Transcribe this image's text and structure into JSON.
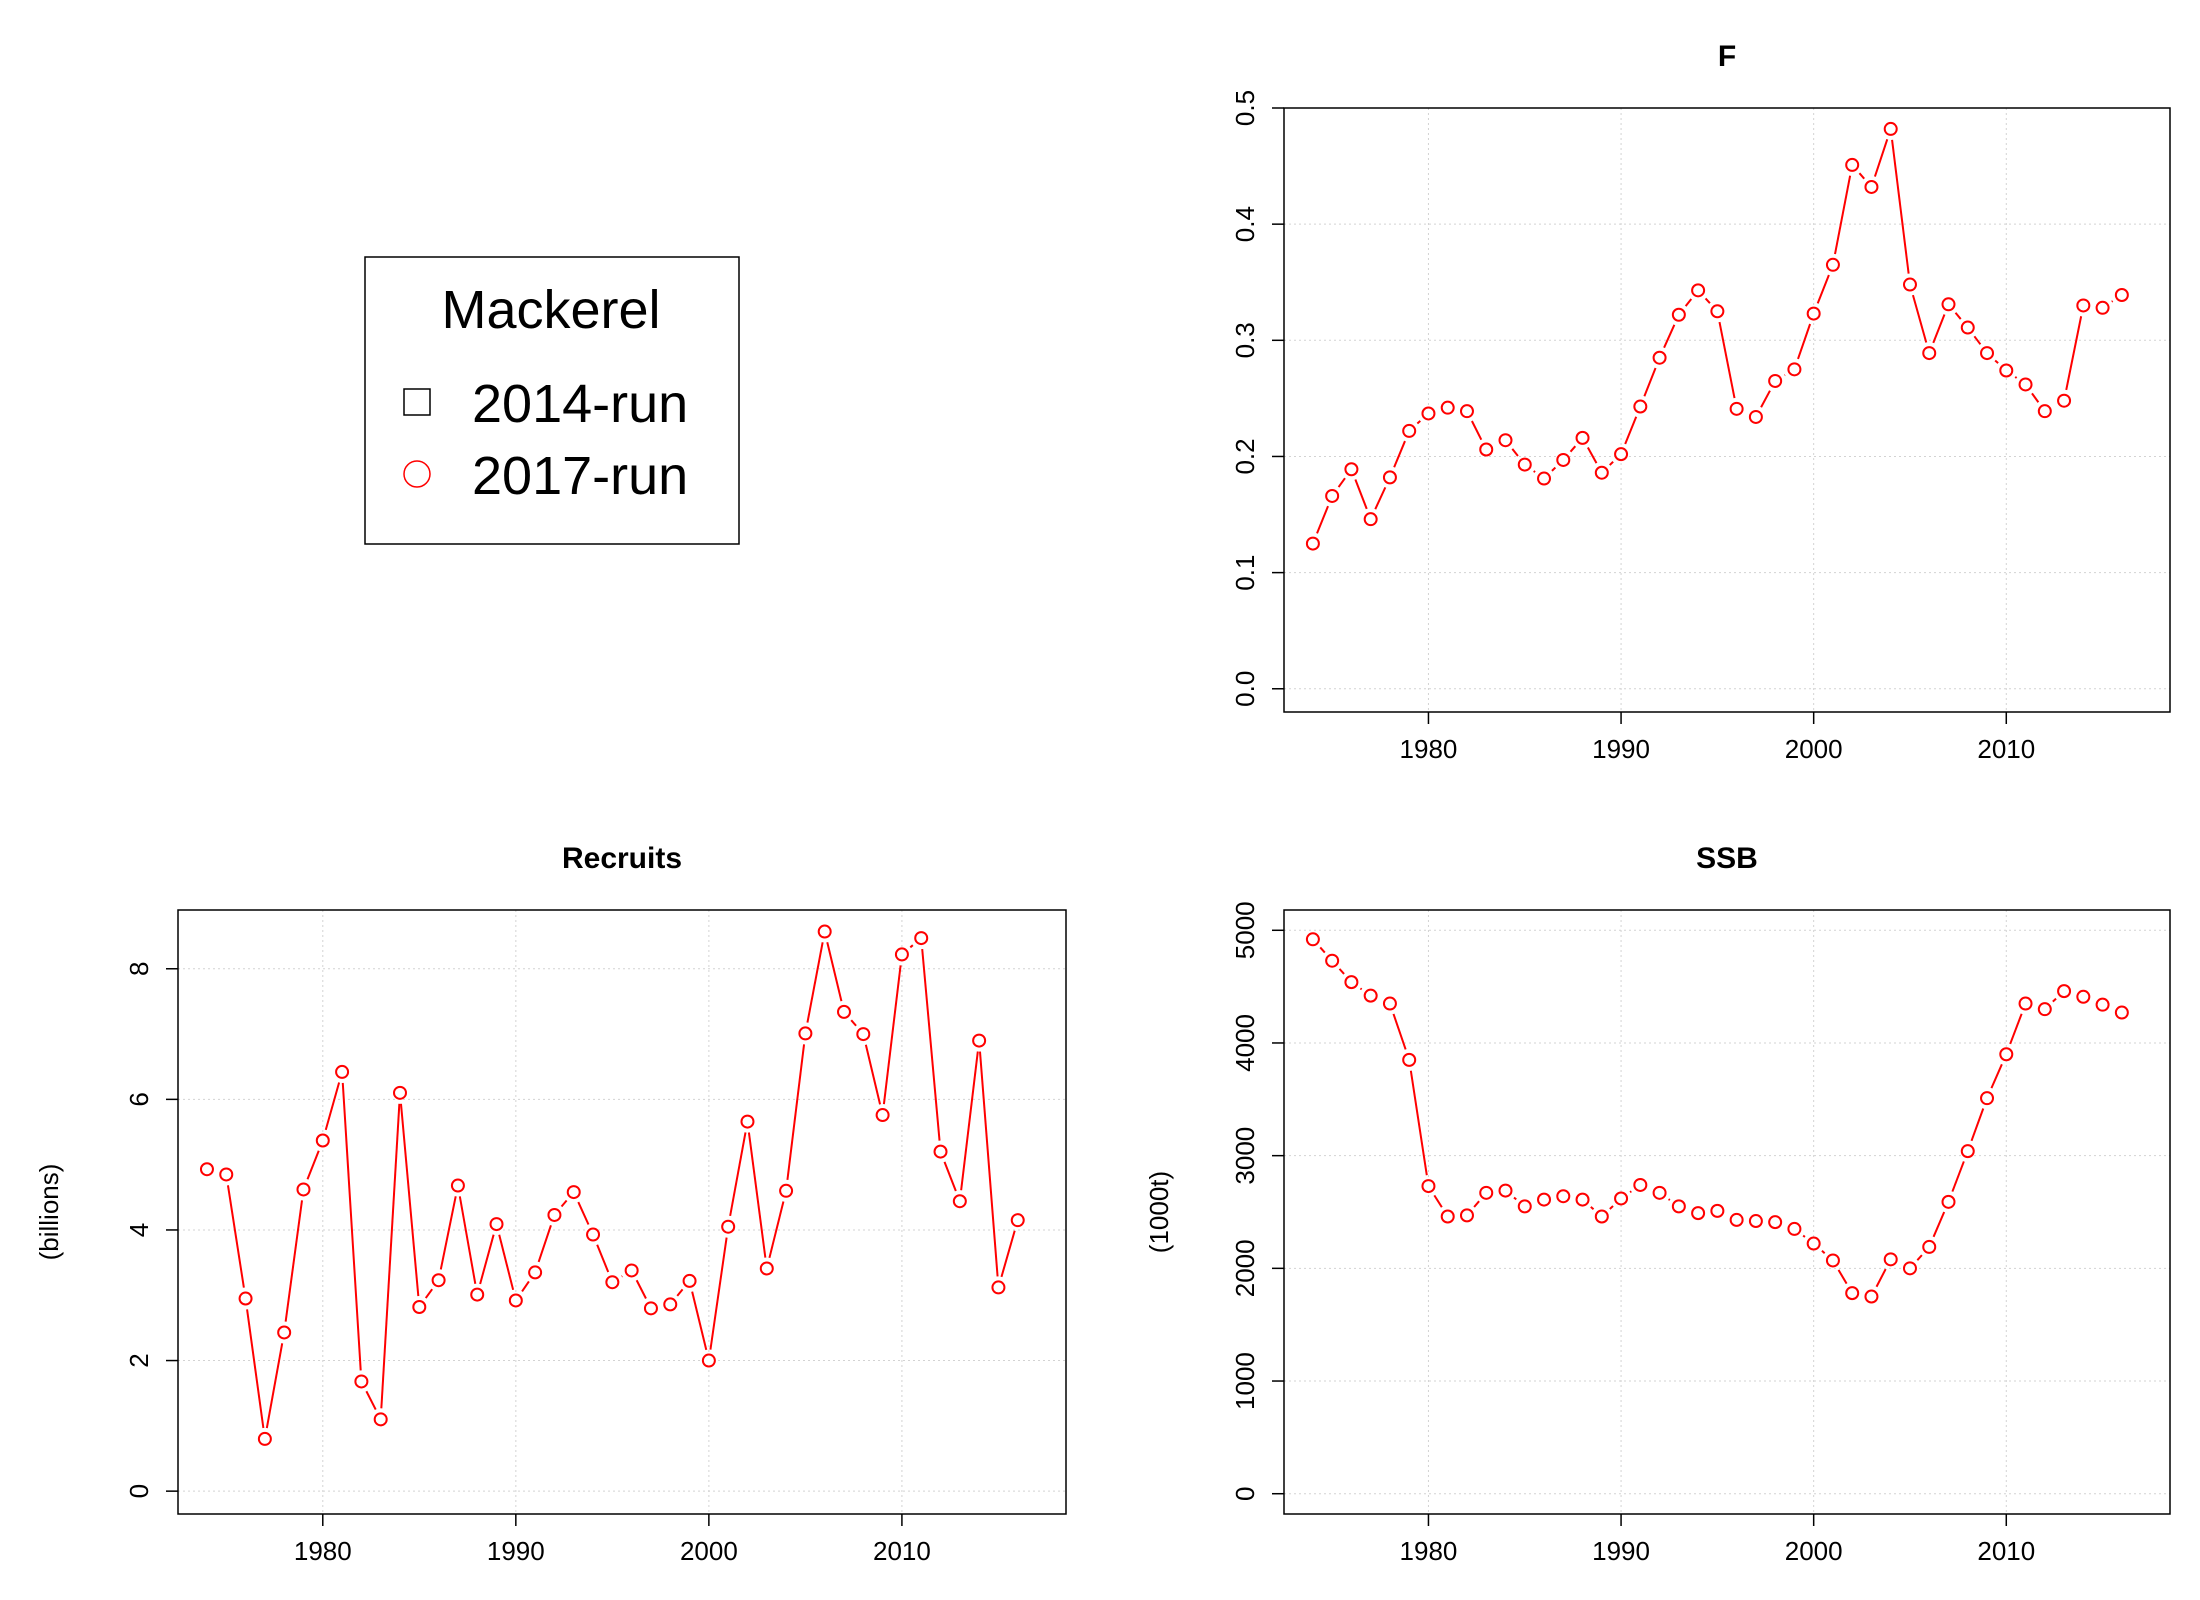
{
  "legend": {
    "title": "Mackerel",
    "entries": [
      {
        "label": "2014-run",
        "marker": "square",
        "color": "#000000"
      },
      {
        "label": "2017-run",
        "marker": "circle",
        "color": "#ff0000"
      }
    ]
  },
  "colors": {
    "series": "#ff0000",
    "grid": "#d3d3d3",
    "axis": "#000000"
  },
  "chart_data": [
    {
      "id": "f",
      "type": "line",
      "title": "F",
      "ylabel": "",
      "xlim": [
        1972.5,
        2018.5
      ],
      "ylim": [
        -0.02,
        0.5
      ],
      "x_ticks": [
        1980,
        1990,
        2000,
        2010
      ],
      "y_ticks": [
        0.0,
        0.1,
        0.2,
        0.3,
        0.4,
        0.5
      ],
      "y_tick_labels": [
        "0.0",
        "0.1",
        "0.2",
        "0.3",
        "0.4",
        "0.5"
      ],
      "grid": true,
      "series": [
        {
          "name": "2017-run",
          "x": [
            1974,
            1975,
            1976,
            1977,
            1978,
            1979,
            1980,
            1981,
            1982,
            1983,
            1984,
            1985,
            1986,
            1987,
            1988,
            1989,
            1990,
            1991,
            1992,
            1993,
            1994,
            1995,
            1996,
            1997,
            1998,
            1999,
            2000,
            2001,
            2002,
            2003,
            2004,
            2005,
            2006,
            2007,
            2008,
            2009,
            2010,
            2011,
            2012,
            2013,
            2014,
            2015,
            2016
          ],
          "y": [
            0.125,
            0.166,
            0.189,
            0.146,
            0.182,
            0.222,
            0.237,
            0.242,
            0.239,
            0.206,
            0.214,
            0.193,
            0.181,
            0.197,
            0.216,
            0.186,
            0.202,
            0.243,
            0.285,
            0.322,
            0.343,
            0.325,
            0.241,
            0.234,
            0.265,
            0.275,
            0.323,
            0.365,
            0.451,
            0.432,
            0.482,
            0.348,
            0.289,
            0.331,
            0.311,
            0.289,
            0.274,
            0.262,
            0.239,
            0.248,
            0.33,
            0.328,
            0.339
          ]
        }
      ]
    },
    {
      "id": "recruits",
      "type": "line",
      "title": "Recruits",
      "ylabel": "(billions)",
      "xlim": [
        1972.5,
        2018.5
      ],
      "ylim": [
        -0.35,
        8.9
      ],
      "x_ticks": [
        1980,
        1990,
        2000,
        2010
      ],
      "y_ticks": [
        0,
        2,
        4,
        6,
        8
      ],
      "y_tick_labels": [
        "0",
        "2",
        "4",
        "6",
        "8"
      ],
      "grid": true,
      "series": [
        {
          "name": "2017-run",
          "x": [
            1974,
            1975,
            1976,
            1977,
            1978,
            1979,
            1980,
            1981,
            1982,
            1983,
            1984,
            1985,
            1986,
            1987,
            1988,
            1989,
            1990,
            1991,
            1992,
            1993,
            1994,
            1995,
            1996,
            1997,
            1998,
            1999,
            2000,
            2001,
            2002,
            2003,
            2004,
            2005,
            2006,
            2007,
            2008,
            2009,
            2010,
            2011,
            2012,
            2013,
            2014,
            2015,
            2016
          ],
          "y": [
            4.93,
            4.85,
            2.95,
            0.8,
            2.43,
            4.62,
            5.37,
            6.42,
            1.68,
            1.1,
            6.1,
            2.82,
            3.23,
            4.68,
            3.01,
            4.09,
            2.92,
            3.35,
            4.23,
            4.58,
            3.93,
            3.2,
            3.38,
            2.8,
            2.86,
            3.22,
            2.0,
            4.05,
            5.66,
            3.41,
            4.6,
            7.01,
            8.57,
            7.34,
            7.0,
            5.76,
            8.22,
            8.47,
            5.2,
            4.44,
            6.9,
            3.12,
            4.15
          ]
        }
      ]
    },
    {
      "id": "ssb",
      "type": "line",
      "title": "SSB",
      "ylabel": "(1000t)",
      "xlim": [
        1972.5,
        2018.5
      ],
      "ylim": [
        -180,
        5180
      ],
      "x_ticks": [
        1980,
        1990,
        2000,
        2010
      ],
      "y_ticks": [
        0,
        1000,
        2000,
        3000,
        4000,
        5000
      ],
      "y_tick_labels": [
        "0",
        "1000",
        "2000",
        "3000",
        "4000",
        "5000"
      ],
      "grid": true,
      "series": [
        {
          "name": "2017-run",
          "x": [
            1974,
            1975,
            1976,
            1977,
            1978,
            1979,
            1980,
            1981,
            1982,
            1983,
            1984,
            1985,
            1986,
            1987,
            1988,
            1989,
            1990,
            1991,
            1992,
            1993,
            1994,
            1995,
            1996,
            1997,
            1998,
            1999,
            2000,
            2001,
            2002,
            2003,
            2004,
            2005,
            2006,
            2007,
            2008,
            2009,
            2010,
            2011,
            2012,
            2013,
            2014,
            2015,
            2016
          ],
          "y": [
            4920,
            4730,
            4540,
            4420,
            4350,
            3850,
            2730,
            2460,
            2470,
            2670,
            2690,
            2550,
            2610,
            2640,
            2610,
            2460,
            2620,
            2740,
            2670,
            2550,
            2490,
            2510,
            2430,
            2420,
            2410,
            2350,
            2220,
            2070,
            1780,
            1750,
            2080,
            2000,
            2190,
            2590,
            3040,
            3510,
            3900,
            4350,
            4300,
            4460,
            4410,
            4340,
            4270
          ]
        }
      ]
    }
  ]
}
